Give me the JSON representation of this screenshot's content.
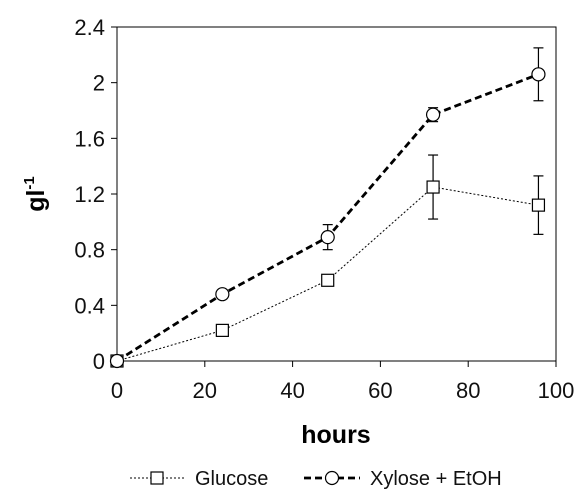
{
  "chart_data": {
    "type": "line",
    "xlabel": "hours",
    "ylabel": {
      "base": "gl",
      "sup": "-1"
    },
    "xlim": [
      0,
      100
    ],
    "ylim": [
      0,
      2.4
    ],
    "xticks": [
      "0",
      "20",
      "40",
      "60",
      "80",
      "100"
    ],
    "yticks": [
      "0",
      "0.4",
      "0.8",
      "1.2",
      "1.6",
      "2",
      "2.4"
    ],
    "grid": false,
    "legend_position": "bottom",
    "x": [
      0,
      24,
      48,
      72,
      96
    ],
    "series": [
      {
        "name": "Glucose",
        "marker": "square",
        "line_style": "dotted-thin",
        "color": "#000000",
        "values": [
          0.0,
          0.22,
          0.58,
          1.25,
          1.12
        ],
        "errors": [
          0.0,
          0.02,
          0.03,
          0.23,
          0.21
        ]
      },
      {
        "name": "Xylose + EtOH",
        "marker": "circle",
        "line_style": "dashed-thick",
        "color": "#000000",
        "values": [
          0.0,
          0.48,
          0.89,
          1.77,
          2.06
        ],
        "errors": [
          0.0,
          0.02,
          0.09,
          0.05,
          0.19
        ]
      }
    ]
  }
}
